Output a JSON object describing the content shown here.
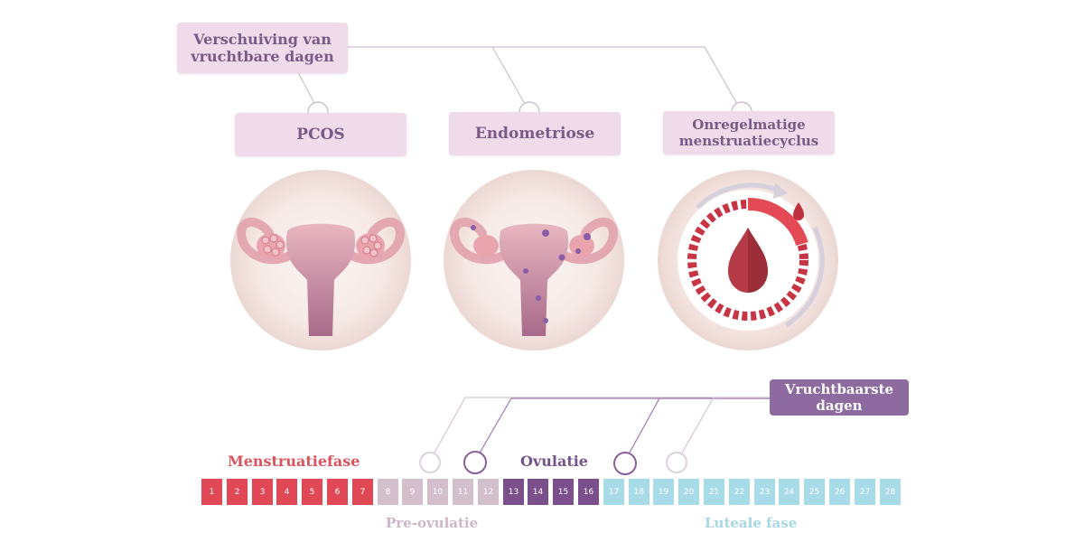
{
  "top_box": {
    "label": "Verschuiving van vruchtbare dagen"
  },
  "conditions": [
    {
      "label": "PCOS",
      "icon": "uterus-pcos-icon"
    },
    {
      "label": "Endometriose",
      "icon": "uterus-endometriosis-icon"
    },
    {
      "label": "Onregelmatige menstruatiecyclus",
      "icon": "irregular-cycle-icon"
    }
  ],
  "fertile_box": {
    "label": "Vruchtbaarste dagen"
  },
  "phases": {
    "menstrual": "Menstruatiefase",
    "ovulation": "Ovulatie",
    "pre_ovulation": "Pre-ovulatie",
    "luteal": "Luteale fase"
  },
  "days": [
    "1",
    "2",
    "3",
    "4",
    "5",
    "6",
    "7",
    "8",
    "9",
    "10",
    "11",
    "12",
    "13",
    "14",
    "15",
    "16",
    "17",
    "18",
    "19",
    "20",
    "21",
    "22",
    "23",
    "24",
    "25",
    "26",
    "27",
    "28"
  ],
  "colors": {
    "menstrual": "#e04856",
    "pre_ovulation": "#d4bfcc",
    "ovulation": "#7a4f8c",
    "luteal": "#a8dbe8",
    "menstrual_text": "#d9535d",
    "pre_ovulation_text": "#cdb8c8",
    "ovulation_text": "#76528a",
    "luteal_text": "#a6d7e6"
  }
}
